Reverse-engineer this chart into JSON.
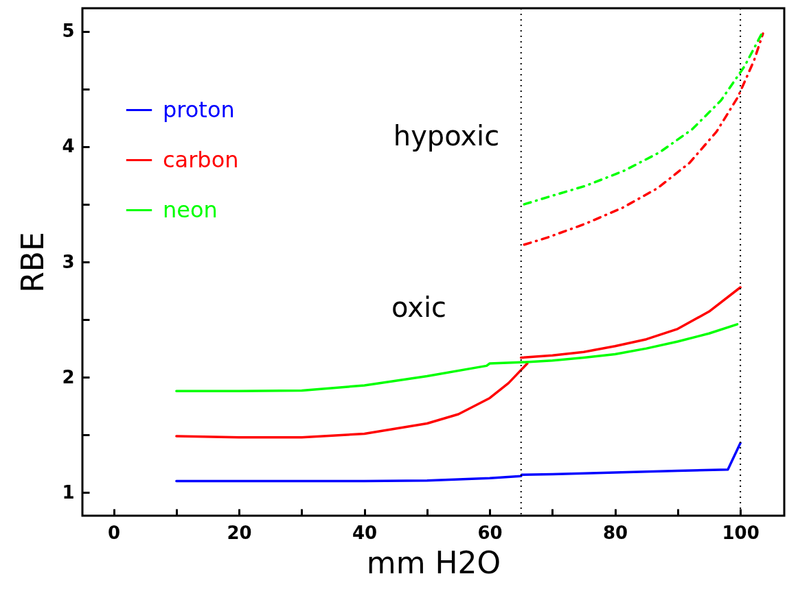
{
  "chart_data": {
    "type": "line",
    "xlabel": "mm  H2O",
    "ylabel": "RBE",
    "xlim": [
      -5,
      107
    ],
    "ylim": [
      0.8,
      5.2
    ],
    "xticks": [
      0,
      {
        "value": 10,
        "label": null
      },
      20,
      {
        "value": 30,
        "label": null
      },
      40,
      {
        "value": 50,
        "label": null
      },
      60,
      {
        "value": 70,
        "label": null
      },
      80,
      {
        "value": 90,
        "label": null
      },
      100
    ],
    "yticks": [
      1,
      {
        "value": 1.5,
        "label": null
      },
      2,
      {
        "value": 2.5,
        "label": null
      },
      3,
      {
        "value": 3.5,
        "label": null
      },
      4,
      {
        "value": 4.5,
        "label": null
      },
      5
    ],
    "grid": false,
    "legend": "top left",
    "marker": "none",
    "annotations": [
      "hypoxic",
      "oxic"
    ],
    "ref_lines": [
      {
        "axis": "x",
        "value": 65,
        "line_style": "dotted",
        "color": "#000000"
      },
      {
        "axis": "x",
        "value": 100,
        "line_style": "dotted",
        "color": "#000000"
      }
    ],
    "series": [
      {
        "name": "proton",
        "color": "#0000ff",
        "line_style": "solid",
        "x": [
          10,
          20,
          30,
          40,
          50,
          60,
          65,
          65.1,
          70,
          80,
          90,
          98,
          100
        ],
        "values": [
          1.1,
          1.1,
          1.1,
          1.1,
          1.105,
          1.125,
          1.143,
          1.155,
          1.16,
          1.175,
          1.19,
          1.2,
          1.43
        ]
      },
      {
        "name": "carbon",
        "color": "#ff0000",
        "line_style": "solid",
        "x": [
          10,
          20,
          30,
          40,
          50,
          55,
          60,
          63,
          66,
          null,
          65,
          70,
          75,
          80,
          85,
          90,
          95,
          100
        ],
        "values": [
          1.49,
          1.48,
          1.48,
          1.51,
          1.6,
          1.68,
          1.82,
          1.95,
          2.12,
          null,
          2.17,
          2.19,
          2.22,
          2.27,
          2.33,
          2.42,
          2.57,
          2.78
        ]
      },
      {
        "name": "neon",
        "color": "#00ff00",
        "line_style": "solid",
        "x": [
          10,
          20,
          30,
          40,
          50,
          59.5,
          60,
          65,
          70,
          75,
          80,
          85,
          90,
          95,
          99.5
        ],
        "values": [
          1.88,
          1.88,
          1.885,
          1.93,
          2.01,
          2.1,
          2.12,
          2.13,
          2.145,
          2.17,
          2.2,
          2.25,
          2.31,
          2.38,
          2.46
        ]
      },
      {
        "color": "#ff0000",
        "line_style": "dashdot",
        "x": [
          65.5,
          69.1,
          75.2,
          81.2,
          86.8,
          91.9,
          96.2,
          99.6,
          102.2,
          103.6
        ],
        "values": [
          3.15,
          3.21,
          3.33,
          3.47,
          3.64,
          3.86,
          4.13,
          4.43,
          4.75,
          4.98
        ]
      },
      {
        "color": "#00ff00",
        "line_style": "dashdot",
        "x": [
          65.5,
          69.1,
          75.3,
          81.4,
          87.1,
          92.3,
          96.9,
          100.7,
          103.7
        ],
        "values": [
          3.5,
          3.56,
          3.66,
          3.79,
          3.95,
          4.15,
          4.4,
          4.7,
          5.01
        ]
      }
    ]
  }
}
